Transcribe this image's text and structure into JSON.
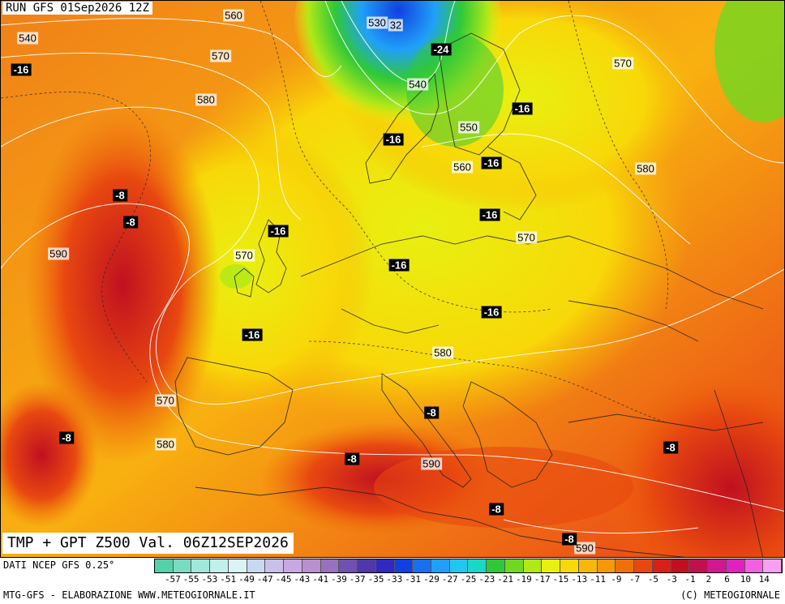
{
  "header": {
    "run_label": "RUN GFS 01Sep2026 12Z"
  },
  "map_title": "TMP + GPT Z500 Val. 06Z12SEP2026",
  "footer": {
    "source": "DATI NCEP GFS 0.25°",
    "credit": "MTG-GFS - ELABORAZIONE WWW.METEOGIORNALE.IT",
    "copyright": "(C) METEOGIORNALE"
  },
  "geopotential_labels": [
    "560",
    "540",
    "570",
    "580",
    "530",
    "32",
    "540",
    "550",
    "560",
    "570",
    "580",
    "570",
    "590",
    "580",
    "570",
    "580",
    "590",
    "590"
  ],
  "temperature_labels": [
    "-16",
    "-24",
    "-16",
    "-16",
    "-16",
    "-16",
    "-8",
    "-8",
    "-16",
    "-16",
    "-16",
    "-16",
    "-8",
    "-8",
    "-8",
    "-8",
    "-8",
    "-8"
  ],
  "legend": {
    "ticks": [
      "-57",
      "-55",
      "-53",
      "-51",
      "-49",
      "-47",
      "-45",
      "-43",
      "-41",
      "-39",
      "-37",
      "-35",
      "-33",
      "-31",
      "-29",
      "-27",
      "-25",
      "-23",
      "-21",
      "-19",
      "-17",
      "-15",
      "-13",
      "-11",
      "-9",
      "-7",
      "-5",
      "-3",
      "-1",
      "2",
      "6",
      "10",
      "14"
    ],
    "colors": [
      "#55d0a8",
      "#78dcc0",
      "#a0e8d8",
      "#c0f0e8",
      "#d8f4f4",
      "#c8d8f0",
      "#c8c0e8",
      "#c8a8e0",
      "#b890d0",
      "#9870c0",
      "#7050b0",
      "#5038a8",
      "#3028c0",
      "#1040e0",
      "#1870f0",
      "#20a0f8",
      "#20c8f0",
      "#18d8c8",
      "#30c838",
      "#70d820",
      "#b0e818",
      "#e8f010",
      "#f8d808",
      "#f8b808",
      "#f89808",
      "#f07008",
      "#e84810",
      "#d82018",
      "#c01020",
      "#c01050",
      "#d01890",
      "#e020c0",
      "#f060e0",
      "#f8a0f0"
    ]
  }
}
